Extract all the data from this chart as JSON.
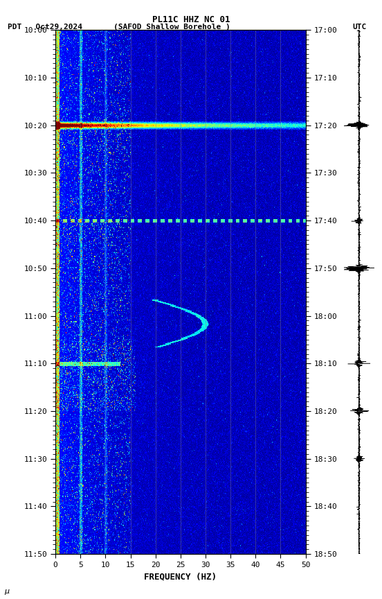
{
  "title_line1": "PL11C HHZ NC 01",
  "title_line2_left": "PDT   Oct29,2024",
  "title_line2_center": "(SAFOD Shallow Borehole )",
  "title_line2_right": "UTC",
  "xlabel": "FREQUENCY (HZ)",
  "freq_min": 0,
  "freq_max": 50,
  "freq_ticks": [
    0,
    5,
    10,
    15,
    20,
    25,
    30,
    35,
    40,
    45,
    50
  ],
  "time_left_labels": [
    "10:00",
    "10:10",
    "10:20",
    "10:30",
    "10:40",
    "10:50",
    "11:00",
    "11:10",
    "11:20",
    "11:30",
    "11:40",
    "11:50"
  ],
  "time_right_labels": [
    "17:00",
    "17:10",
    "17:20",
    "17:30",
    "17:40",
    "17:50",
    "18:00",
    "18:10",
    "18:20",
    "18:30",
    "18:40",
    "18:50"
  ],
  "bg_color": "white",
  "colormap": "jet",
  "vline_color": "#888888",
  "figsize": [
    5.52,
    8.64
  ],
  "dpi": 100
}
